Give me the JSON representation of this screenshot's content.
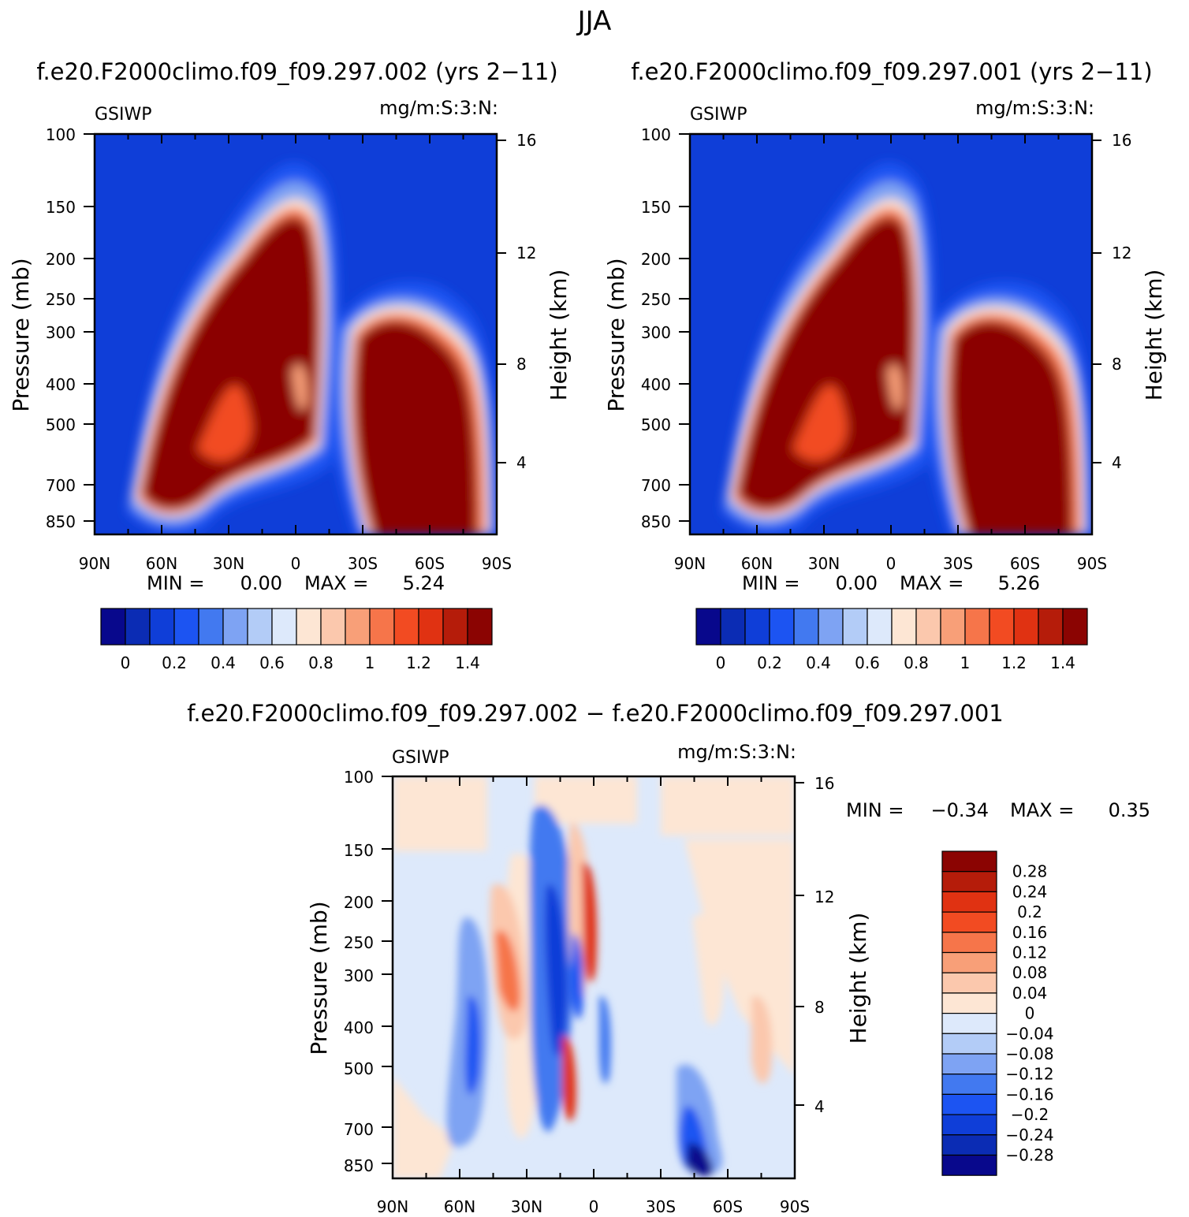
{
  "figure": {
    "season_title": "JJA"
  },
  "chart_data": [
    {
      "type": "heatmap",
      "title": "f.e20.F2000climo.f09_f09.297.002 (yrs 2−11)",
      "variable": "GSIWP",
      "units": "mg/m:S:3:N:",
      "xlabel": "",
      "ylabel": "Pressure (mb)",
      "y2label": "Height (km)",
      "x_ticks": [
        "90N",
        "60N",
        "30N",
        "0",
        "30S",
        "60S",
        "90S"
      ],
      "y_ticks": [
        "100",
        "150",
        "200",
        "250",
        "300",
        "400",
        "500",
        "700",
        "850"
      ],
      "y2_ticks": [
        "16",
        "12",
        "8",
        "4"
      ],
      "min_label": "MIN =",
      "min_value": "0.00",
      "max_label": "MAX =",
      "max_value": "5.24",
      "colorbar_labels": [
        "0",
        "0.2",
        "0.4",
        "0.6",
        "0.8",
        "1",
        "1.2",
        "1.4"
      ],
      "colorbar_levels": [
        0.0,
        0.1,
        0.2,
        0.3,
        0.4,
        0.5,
        0.6,
        0.7,
        0.8,
        0.9,
        1.0,
        1.1,
        1.2,
        1.3,
        1.4
      ],
      "features": "cloud ice maximum in NH mid/upper troposphere (60N-5N, 160-560 mb) and SH high latitudes (30S-70S, 300-850 mb)"
    },
    {
      "type": "heatmap",
      "title": "f.e20.F2000climo.f09_f09.297.001 (yrs 2−11)",
      "variable": "GSIWP",
      "units": "mg/m:S:3:N:",
      "xlabel": "",
      "ylabel": "Pressure (mb)",
      "y2label": "Height (km)",
      "x_ticks": [
        "90N",
        "60N",
        "30N",
        "0",
        "30S",
        "60S",
        "90S"
      ],
      "y_ticks": [
        "100",
        "150",
        "200",
        "250",
        "300",
        "400",
        "500",
        "700",
        "850"
      ],
      "y2_ticks": [
        "16",
        "12",
        "8",
        "4"
      ],
      "min_label": "MIN =",
      "min_value": "0.00",
      "max_label": "MAX =",
      "max_value": "5.26",
      "colorbar_labels": [
        "0",
        "0.2",
        "0.4",
        "0.6",
        "0.8",
        "1",
        "1.2",
        "1.4"
      ],
      "colorbar_levels": [
        0.0,
        0.1,
        0.2,
        0.3,
        0.4,
        0.5,
        0.6,
        0.7,
        0.8,
        0.9,
        1.0,
        1.1,
        1.2,
        1.3,
        1.4
      ]
    },
    {
      "type": "heatmap",
      "title": "f.e20.F2000climo.f09_f09.297.002 − f.e20.F2000climo.f09_f09.297.001",
      "variable": "GSIWP",
      "units": "mg/m:S:3:N:",
      "xlabel": "",
      "ylabel": "Pressure (mb)",
      "y2label": "Height (km)",
      "x_ticks": [
        "90N",
        "60N",
        "30N",
        "0",
        "30S",
        "60S",
        "90S"
      ],
      "y_ticks": [
        "100",
        "150",
        "200",
        "250",
        "300",
        "400",
        "500",
        "700",
        "850"
      ],
      "y2_ticks": [
        "16",
        "12",
        "8",
        "4"
      ],
      "min_label": "MIN =",
      "min_value": "−0.34",
      "max_label": "MAX =",
      "max_value": "0.35",
      "colorbar_labels": [
        "0.28",
        "0.24",
        "0.2",
        "0.16",
        "0.12",
        "0.08",
        "0.04",
        "0",
        "−0.04",
        "−0.08",
        "−0.12",
        "−0.16",
        "−0.2",
        "−0.24",
        "−0.28"
      ],
      "colorbar_levels": [
        -0.28,
        -0.24,
        -0.2,
        -0.16,
        -0.12,
        -0.08,
        -0.04,
        0,
        0.04,
        0.08,
        0.12,
        0.16,
        0.2,
        0.24,
        0.28
      ]
    }
  ],
  "colors": {
    "field16": [
      "#08088c",
      "#0b2cb4",
      "#0f3ed8",
      "#1c54f2",
      "#4279f0",
      "#7ea3f3",
      "#b3ccf7",
      "#dde9fb",
      "#fde6d4",
      "#fbc8ad",
      "#f89f78",
      "#f6754a",
      "#f24b22",
      "#e03212",
      "#b51c0a",
      "#8b0402"
    ],
    "diff16": [
      "#08088c",
      "#0b2cb4",
      "#0f3ed8",
      "#1c54f2",
      "#4279f0",
      "#7ea3f3",
      "#b3ccf7",
      "#dde9fb",
      "#fde6d4",
      "#fbc8ad",
      "#f89f78",
      "#f6754a",
      "#f24b22",
      "#e03212",
      "#b51c0a",
      "#8b0402"
    ]
  }
}
